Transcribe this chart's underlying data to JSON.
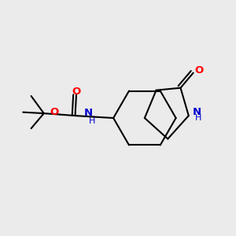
{
  "bg_color": "#ebebeb",
  "bond_color": "#000000",
  "oxygen_color": "#ff0000",
  "nitrogen_color": "#0000cc",
  "line_width": 1.5,
  "figsize": [
    3.0,
    3.0
  ],
  "dpi": 100,
  "xlim": [
    0.0,
    1.0
  ],
  "ylim": [
    0.1,
    0.9
  ]
}
